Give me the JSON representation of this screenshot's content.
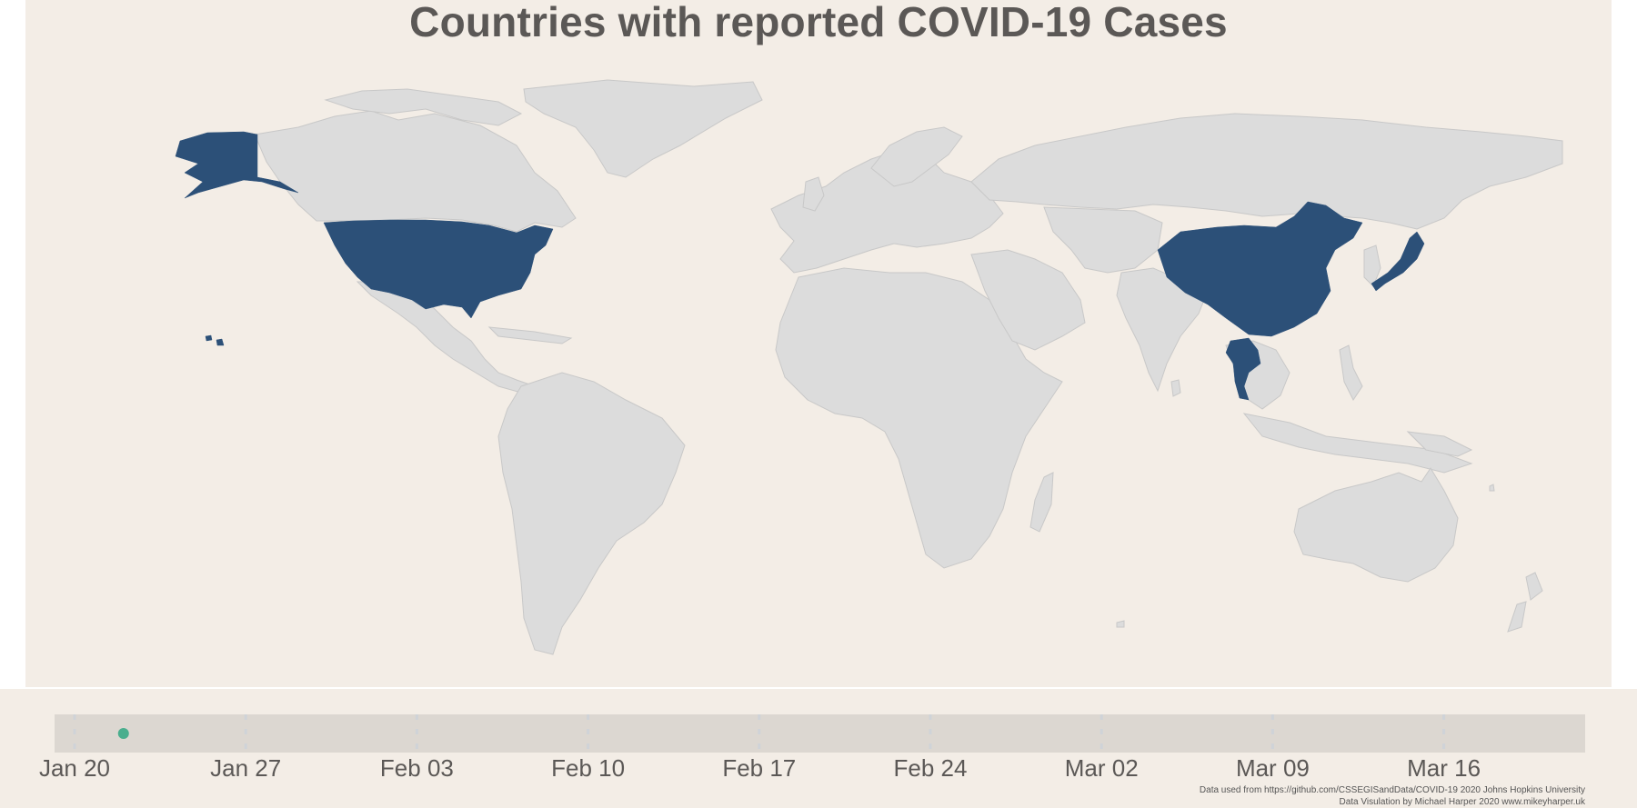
{
  "title": "Countries with reported COVID-19 Cases",
  "colors": {
    "background": "#f3ede6",
    "land": "#dcdcdc",
    "border": "#c8c8c8",
    "reported": "#2c5078",
    "timeline_track": "#dcd7d1",
    "timeline_tick": "#cfd3d8",
    "marker": "#4aae8e",
    "text": "#5b5856"
  },
  "reported_countries": [
    "United States",
    "China",
    "Japan",
    "Thailand"
  ],
  "timeline": {
    "ticks": [
      "Jan 20",
      "Jan 27",
      "Feb 03",
      "Feb 10",
      "Feb 17",
      "Feb 24",
      "Mar 02",
      "Mar 09",
      "Mar 16"
    ],
    "current_date": "2020-01-22",
    "start_date": "2020-01-20",
    "end_date": "2020-03-21"
  },
  "credits": {
    "line1": "Data used from  https://github.com/CSSEGISandData/COVID-19 2020 Johns Hopkins University",
    "line2": "Data Visulation by Michael Harper 2020 www.mikeyharper.uk"
  }
}
